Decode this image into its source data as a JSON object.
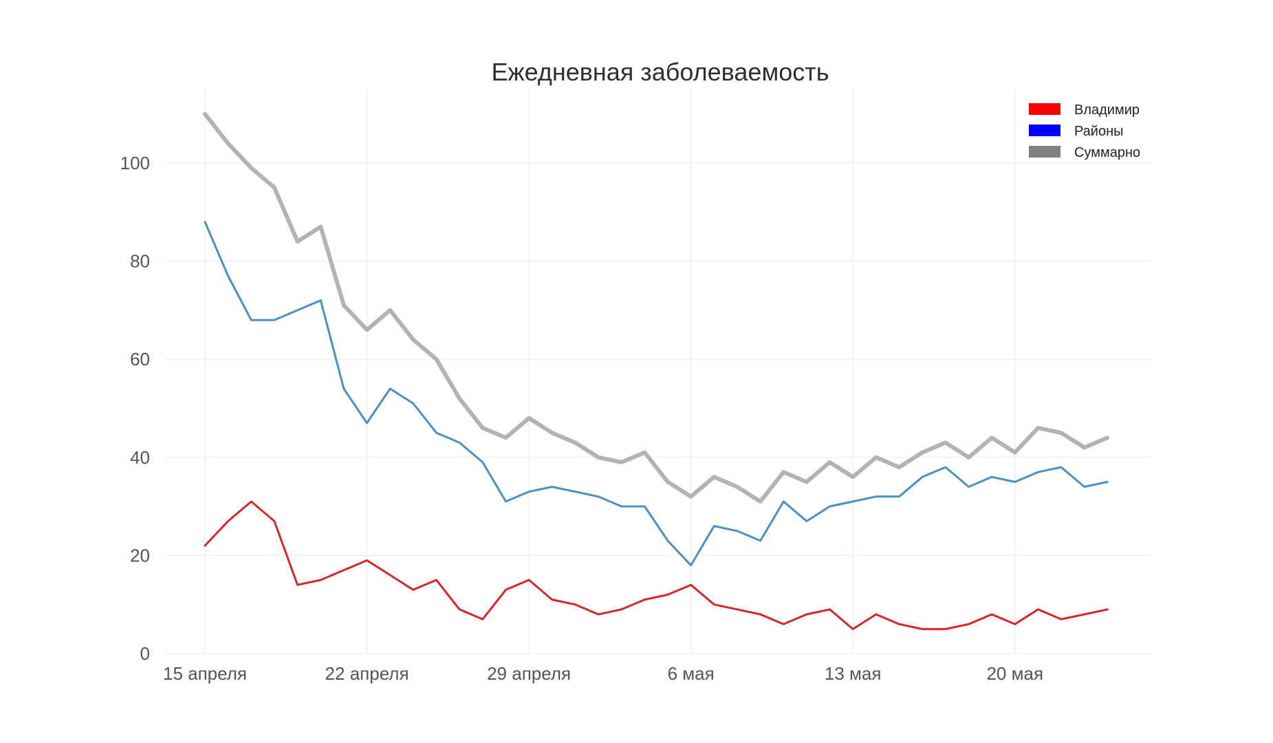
{
  "chart_data": {
    "type": "line",
    "title": "Ежедневная заболеваемость",
    "xlabel": "",
    "ylabel": "",
    "ylim": [
      0,
      115
    ],
    "yticks": [
      0,
      20,
      40,
      60,
      80,
      100
    ],
    "x_tick_labels": [
      {
        "day": 0,
        "label": "15 апреля"
      },
      {
        "day": 7,
        "label": "22 апреля"
      },
      {
        "day": 14,
        "label": "29 апреля"
      },
      {
        "day": 21,
        "label": "6 мая"
      },
      {
        "day": 28,
        "label": "13 мая"
      },
      {
        "day": 35,
        "label": "20 мая"
      }
    ],
    "x_dates": [
      "15 апреля",
      "16 апреля",
      "17 апреля",
      "18 апреля",
      "19 апреля",
      "20 апреля",
      "21 апреля",
      "22 апреля",
      "23 апреля",
      "24 апреля",
      "25 апреля",
      "26 апреля",
      "27 апреля",
      "28 апреля",
      "29 апреля",
      "30 апреля",
      "1 мая",
      "2 мая",
      "3 мая",
      "4 мая",
      "5 мая",
      "6 мая",
      "7 мая",
      "8 мая",
      "9 мая",
      "10 мая",
      "11 мая",
      "12 мая",
      "13 мая",
      "14 мая",
      "15 мая",
      "16 мая",
      "17 мая",
      "18 мая",
      "19 мая",
      "20 мая",
      "21 мая",
      "22 мая",
      "23 мая",
      "24 мая"
    ],
    "grid": true,
    "legend_position": "top-right",
    "series": [
      {
        "name": "Суммарно",
        "color": "#b3b3b3",
        "legend_color": "#808080",
        "values": [
          110,
          104,
          99,
          95,
          84,
          87,
          71,
          66,
          70,
          64,
          60,
          52,
          46,
          44,
          48,
          45,
          43,
          40,
          39,
          41,
          35,
          32,
          36,
          34,
          31,
          37,
          35,
          39,
          36,
          40,
          38,
          41,
          43,
          40,
          44,
          41,
          46,
          45,
          42,
          44
        ]
      },
      {
        "name": "Районы",
        "color": "#4a90c4",
        "legend_color": "#0000ff",
        "values": [
          88,
          77,
          68,
          68,
          70,
          72,
          54,
          47,
          54,
          51,
          45,
          43,
          39,
          31,
          33,
          34,
          33,
          32,
          30,
          30,
          23,
          18,
          26,
          25,
          23,
          31,
          27,
          30,
          31,
          32,
          32,
          36,
          38,
          34,
          36,
          35,
          37,
          38,
          34,
          35
        ]
      },
      {
        "name": "Владимир",
        "color": "#d62728",
        "legend_color": "#ff0000",
        "values": [
          22,
          27,
          31,
          27,
          14,
          15,
          17,
          19,
          16,
          13,
          15,
          9,
          7,
          13,
          15,
          11,
          10,
          8,
          9,
          11,
          12,
          14,
          10,
          9,
          8,
          6,
          8,
          9,
          5,
          8,
          6,
          5,
          5,
          6,
          8,
          6,
          9,
          7,
          8,
          9
        ]
      }
    ],
    "legend_order": [
      "Владимир",
      "Районы",
      "Суммарно"
    ]
  }
}
